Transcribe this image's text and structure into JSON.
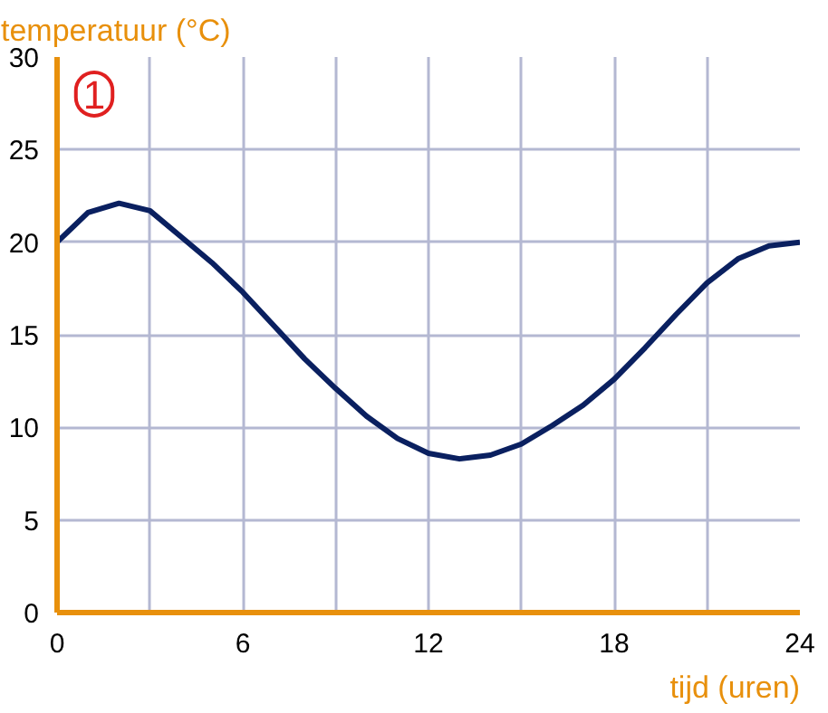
{
  "chart_data": {
    "type": "line",
    "xlabel": "tijd (uren)",
    "ylabel": "temperatuur (°C)",
    "x": [
      0,
      1,
      2,
      3,
      4,
      5,
      6,
      7,
      8,
      9,
      10,
      11,
      12,
      13,
      14,
      15,
      16,
      17,
      18,
      19,
      20,
      21,
      22,
      23,
      24
    ],
    "series": [
      {
        "color": "#0a2060",
        "values": [
          20,
          21.6,
          22.1,
          21.7,
          20.3,
          18.9,
          17.3,
          15.5,
          13.7,
          12.1,
          10.6,
          9.4,
          8.6,
          8.3,
          8.5,
          9.1,
          10.1,
          11.2,
          12.6,
          14.3,
          16.1,
          17.8,
          19.1,
          19.8,
          20
        ]
      }
    ],
    "xlim": [
      0,
      24
    ],
    "ylim": [
      0,
      30
    ],
    "xticks": [
      0,
      {
        "value": 3,
        "label": null
      },
      6,
      {
        "value": 9,
        "label": null
      },
      12,
      {
        "value": 15,
        "label": null
      },
      18,
      {
        "value": 21,
        "label": null
      },
      24
    ],
    "yticks": [
      0,
      5,
      10,
      15,
      20,
      25,
      30
    ],
    "grid": true,
    "marker": "none",
    "line_style": "solid",
    "annotations": [
      "1"
    ]
  }
}
